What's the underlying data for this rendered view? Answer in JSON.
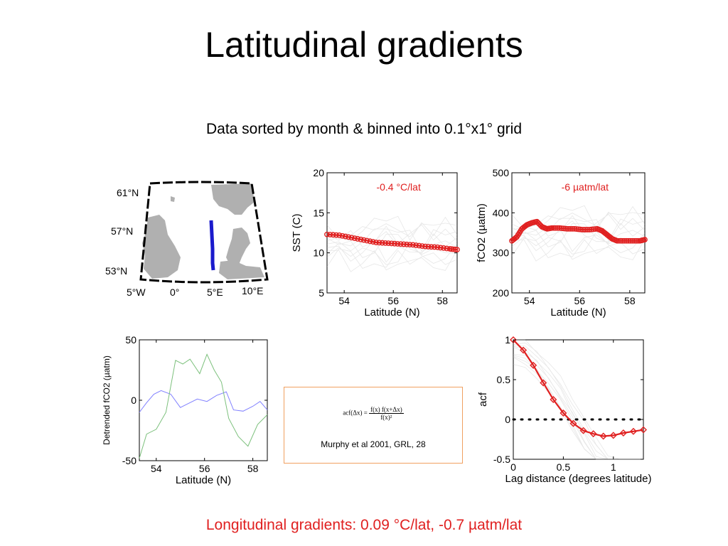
{
  "slide": {
    "title": "Latitudinal gradients",
    "subtitle": "Data sorted by month & binned into 0.1°x1° grid",
    "footer": "Longitudinal gradients: 0.09 °C/lat, -0.7 µatm/lat",
    "accent_color": "#e02020"
  },
  "equation_box": {
    "lhs": "acf(Δx) =",
    "numerator": "f(x) f(x+Δx)",
    "denominator": "f(x)²",
    "citation": "Murphy et al 2001, GRL, 28"
  },
  "map": {
    "lat_labels": [
      "61°N",
      "57°N",
      "53°N"
    ],
    "lon_labels": [
      "5°W",
      "0°",
      "5°E",
      "10°E"
    ],
    "track_color": "#1a1acc",
    "land_color": "#b0b0b0"
  },
  "chart_data": [
    {
      "id": "sst",
      "type": "line",
      "xlabel": "Latitude (N)",
      "ylabel": "SST (C)",
      "annotation": "-0.4 °C/lat",
      "xlim": [
        53.3,
        58.6
      ],
      "ylim": [
        5,
        20
      ],
      "xticks": [
        54,
        56,
        58
      ],
      "yticks": [
        5,
        10,
        15,
        20
      ],
      "series": [
        {
          "x": [
            53.3,
            53.8,
            54.3,
            54.8,
            55.3,
            55.8,
            56.3,
            56.8,
            57.3,
            57.8,
            58.3,
            58.6
          ],
          "y": [
            12.3,
            12.2,
            11.9,
            11.6,
            11.3,
            11.2,
            11.1,
            11.0,
            10.8,
            10.7,
            10.5,
            10.4
          ],
          "color": "#e02020",
          "marker": "circle"
        }
      ]
    },
    {
      "id": "fco2",
      "type": "line",
      "xlabel": "Latitude (N)",
      "ylabel": "fCO2 (µatm)",
      "annotation": "-6 µatm/lat",
      "xlim": [
        53.3,
        58.6
      ],
      "ylim": [
        200,
        500
      ],
      "xticks": [
        54,
        56,
        58
      ],
      "yticks": [
        200,
        300,
        400,
        500
      ],
      "series": [
        {
          "x": [
            53.3,
            53.5,
            53.7,
            53.9,
            54.1,
            54.3,
            54.5,
            54.7,
            54.9,
            55.2,
            55.5,
            55.8,
            56.1,
            56.4,
            56.7,
            56.9,
            57.1,
            57.3,
            57.5,
            57.8,
            58.1,
            58.4,
            58.6
          ],
          "y": [
            330,
            340,
            360,
            370,
            375,
            378,
            365,
            360,
            362,
            362,
            360,
            360,
            358,
            358,
            360,
            355,
            345,
            335,
            330,
            330,
            330,
            330,
            333
          ],
          "color": "#e02020",
          "marker": "circle"
        }
      ]
    },
    {
      "id": "detrended",
      "type": "line",
      "xlabel": "Latitude (N)",
      "ylabel": "Detrended fCO2 (µatm)",
      "xlim": [
        53.3,
        58.6
      ],
      "ylim": [
        -50,
        50
      ],
      "xticks": [
        54,
        56,
        58
      ],
      "yticks": [
        -50,
        0,
        50
      ],
      "series": [
        {
          "name": "",
          "color": "#8080ff",
          "x": [
            53.3,
            53.6,
            53.9,
            54.2,
            54.6,
            55.0,
            55.3,
            55.7,
            56.1,
            56.5,
            56.9,
            57.2,
            57.6,
            58.0,
            58.3,
            58.6
          ],
          "y": [
            -10,
            -2,
            5,
            8,
            5,
            -6,
            -3,
            1,
            -1,
            4,
            7,
            -8,
            -9,
            -5,
            -1,
            -8
          ]
        },
        {
          "name": "",
          "color": "#7cc07c",
          "x": [
            53.3,
            53.6,
            54.0,
            54.4,
            54.8,
            55.1,
            55.4,
            55.8,
            56.1,
            56.4,
            56.7,
            57.0,
            57.4,
            57.8,
            58.2,
            58.6
          ],
          "y": [
            -48,
            -28,
            -24,
            -10,
            33,
            30,
            34,
            22,
            38,
            25,
            15,
            -15,
            -30,
            -38,
            -20,
            -12
          ]
        }
      ]
    },
    {
      "id": "acf",
      "type": "line",
      "xlabel": "Lag distance (degrees latitude)",
      "ylabel": "acf",
      "xlim": [
        0,
        1.3
      ],
      "ylim": [
        -0.5,
        1
      ],
      "xticks": [
        0,
        0.5,
        1
      ],
      "yticks": [
        -0.5,
        0,
        0.5,
        1
      ],
      "zero_line": "dotted",
      "series": [
        {
          "x": [
            0,
            0.1,
            0.2,
            0.3,
            0.4,
            0.5,
            0.6,
            0.7,
            0.8,
            0.9,
            1.0,
            1.1,
            1.2,
            1.3
          ],
          "y": [
            1.0,
            0.87,
            0.68,
            0.46,
            0.25,
            0.08,
            -0.05,
            -0.14,
            -0.18,
            -0.21,
            -0.2,
            -0.17,
            -0.15,
            -0.13
          ],
          "color": "#e02020",
          "marker": "diamond"
        }
      ]
    }
  ]
}
